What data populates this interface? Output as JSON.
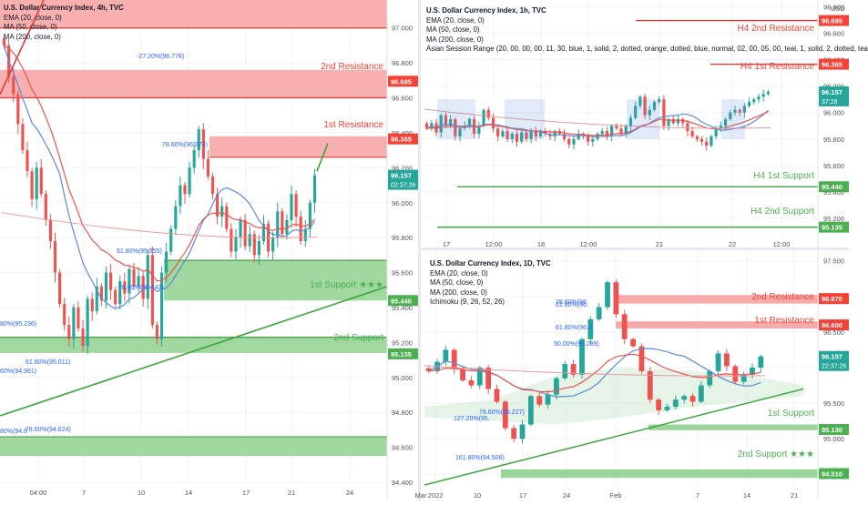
{
  "colors": {
    "up": "#26a69a",
    "down": "#ef5350",
    "ema": "#ef5350",
    "ma50": "#5b8bd6",
    "ma200": "#e59a9a",
    "resistance_zone": "#f7a1a1",
    "resistance_line": "#e53935",
    "support_zone": "#8fd18f",
    "support_line": "#43a047",
    "trend": "#3aa63a",
    "label_red": "#f44336",
    "label_green": "#4caf50",
    "label_teal": "#26a69a"
  },
  "panels": [
    {
      "name": "4h",
      "legend": [
        "U.S. Dollar Currency Index, 4h, TVC",
        "EMA (20, close, 0)",
        "MA (50, close, 0)",
        "MA (200, close, 0)"
      ],
      "currency": "",
      "chart_data": {
        "type": "candlestick",
        "ylim": [
          94.4,
          97.16
        ],
        "y_ticks": [
          "97.000",
          "96.800",
          "96.600",
          "96.400",
          "96.200",
          "96.000",
          "95.800",
          "95.600",
          "95.400",
          "95.200",
          "95.000",
          "94.800",
          "94.600",
          "94.400"
        ],
        "x_ticks": [
          "04:00",
          "7",
          "10",
          "14",
          "17",
          "21",
          "24"
        ],
        "price_labels": [
          {
            "text": "96.695",
            "value": 96.695,
            "kind": "res"
          },
          {
            "text": "96.365",
            "value": 96.365,
            "kind": "res"
          },
          {
            "text": "96.157",
            "sub": "02:37:26",
            "value": 96.157,
            "kind": "last"
          },
          {
            "text": "95.440",
            "value": 95.44,
            "kind": "sup"
          },
          {
            "text": "95.135",
            "value": 95.135,
            "kind": "sup"
          }
        ],
        "zones": [
          {
            "from": 97.0,
            "to": 97.16,
            "kind": "res"
          },
          {
            "from": 96.6,
            "to": 96.76,
            "kind": "res"
          },
          {
            "from": 96.26,
            "to": 96.38,
            "kind": "res"
          },
          {
            "from": 95.44,
            "to": 95.67,
            "kind": "sup"
          },
          {
            "from": 95.14,
            "to": 95.23,
            "kind": "sup"
          },
          {
            "from": 94.55,
            "to": 94.66,
            "kind": "sup"
          }
        ],
        "annotations": [
          "2nd Resistance",
          "1st Resistance",
          "1st Support ★★★",
          "2nd Support"
        ],
        "fib_labels": [
          "-27.20%(96.778)",
          "78.60%(96.273)",
          "61.80%(95.655)",
          "78.60%(95.442)",
          "80%(95.236)",
          "61.80%(95.011)",
          "60%(94.961)",
          "80%(94.6",
          "78.60%(94.624)"
        ],
        "closes": [
          96.9,
          96.72,
          96.62,
          96.45,
          96.3,
          96.18,
          96.02,
          96.2,
          96.05,
          95.9,
          95.78,
          95.6,
          95.42,
          95.3,
          95.22,
          95.4,
          95.28,
          95.18,
          95.45,
          95.38,
          95.52,
          95.44,
          95.6,
          95.5,
          95.42,
          95.55,
          95.48,
          95.62,
          95.52,
          95.58,
          95.45,
          95.7,
          95.3,
          95.22,
          95.6,
          95.72,
          95.85,
          95.98,
          96.1,
          96.05,
          96.2,
          96.3,
          96.42,
          96.25,
          96.15,
          96.05,
          95.92,
          95.98,
          95.85,
          95.72,
          95.8,
          95.9,
          95.75,
          95.82,
          95.7,
          95.78,
          95.88,
          95.72,
          95.8,
          95.95,
          95.82,
          95.9,
          96.05,
          95.92,
          95.78,
          95.85,
          96.0,
          96.157
        ]
      }
    },
    {
      "name": "1h",
      "legend": [
        "U.S. Dollar Currency Index, 1h, TVC",
        "EMA (20, close, 0)",
        "MA (50, close, 0)",
        "MA (200, close, 0)",
        "Asian Session Range (20, 00, 00, 00, 11, 30, blue, 1, solid, 2, dotted, orange, dotted, blue, normal, 02, 00, 05, 00, teal, 1, solid, 2, dotted, tea"
      ],
      "currency": "USD",
      "chart_data": {
        "type": "candlestick",
        "ylim": [
          95.05,
          96.85
        ],
        "y_ticks": [
          "96.800",
          "96.600",
          "96.400",
          "96.200",
          "96.000",
          "95.800",
          "95.600",
          "95.400",
          "95.200"
        ],
        "x_ticks": [
          "17",
          "12:00",
          "18",
          "12:00",
          "21",
          "22",
          "12:00"
        ],
        "price_labels": [
          {
            "text": "96.695",
            "value": 96.695,
            "kind": "res"
          },
          {
            "text": "96.365",
            "value": 96.365,
            "kind": "res"
          },
          {
            "text": "96.157",
            "sub": "37:26",
            "value": 96.157,
            "kind": "last"
          },
          {
            "text": "95.440",
            "value": 95.44,
            "kind": "sup"
          },
          {
            "text": "95.135",
            "value": 95.135,
            "kind": "sup"
          }
        ],
        "annotations": [
          "H4 2nd Resistance",
          "H4 1st Resistance",
          "H4 1st Support",
          "H4 2nd Support"
        ],
        "closes": [
          95.88,
          95.92,
          95.85,
          95.98,
          95.9,
          95.95,
          95.82,
          95.88,
          95.9,
          95.95,
          95.84,
          95.9,
          96.02,
          95.96,
          95.88,
          95.82,
          95.86,
          95.8,
          95.84,
          95.78,
          95.85,
          95.8,
          95.86,
          95.82,
          95.86,
          95.84,
          95.82,
          95.86,
          95.84,
          95.8,
          95.76,
          95.8,
          95.84,
          95.82,
          95.78,
          95.8,
          95.84,
          95.86,
          95.82,
          95.9,
          95.88,
          95.84,
          95.9,
          95.96,
          96.05,
          96.12,
          95.98,
          96.02,
          96.08,
          96.1,
          95.9,
          95.95,
          95.92,
          95.95,
          95.92,
          95.86,
          95.82,
          95.8,
          95.78,
          95.75,
          95.82,
          95.88,
          95.9,
          95.95,
          96.0,
          96.02,
          96.0,
          96.05,
          96.08,
          96.1,
          96.12,
          96.14,
          96.157
        ]
      }
    },
    {
      "name": "1D",
      "legend": [
        "U.S. Dollar Currency Index, 1D, TVC",
        "EMA (20, close, 0)",
        "MA (50, close, 0)",
        "MA (200, close, 0)",
        "Ichimoku (9, 26, 52, 26)"
      ],
      "currency": "",
      "chart_data": {
        "type": "candlestick",
        "ylim": [
          94.35,
          97.65
        ],
        "y_ticks": [
          "97.500",
          "97.000",
          "96.500",
          "96.000",
          "95.500",
          "95.000",
          "94.500"
        ],
        "x_ticks": [
          "2022",
          "10",
          "17",
          "24",
          "Feb",
          "7",
          "14",
          "21",
          "Mar"
        ],
        "price_labels": [
          {
            "text": "96.970",
            "value": 96.97,
            "kind": "res"
          },
          {
            "text": "96.600",
            "value": 96.6,
            "kind": "res"
          },
          {
            "text": "96.157",
            "sub": "22:37:26",
            "value": 96.157,
            "kind": "last"
          },
          {
            "text": "95.130",
            "value": 95.13,
            "kind": "sup"
          },
          {
            "text": "94.510",
            "value": 94.51,
            "kind": "sup"
          }
        ],
        "annotations": [
          "2nd Resistance",
          "1st Resistance",
          "1st Support",
          "2nd Support ★★★"
        ],
        "fib_labels": [
          "78.60%(96.",
          "61.80%(96.",
          "61.80%(96.3",
          "50.00%(96.289)",
          "78.60%(95.227)",
          "127.20%(95.",
          "161.80%(94.508)"
        ],
        "closes": [
          95.95,
          96.08,
          96.25,
          95.98,
          95.82,
          95.75,
          96.0,
          95.7,
          95.52,
          95.15,
          95.0,
          95.2,
          95.6,
          95.48,
          95.62,
          95.85,
          96.05,
          95.9,
          96.4,
          96.68,
          96.85,
          97.2,
          96.75,
          96.4,
          96.3,
          95.95,
          95.55,
          95.4,
          95.45,
          95.55,
          95.6,
          95.52,
          95.75,
          95.95,
          96.2,
          96.02,
          95.8,
          95.9,
          96.0,
          96.157
        ]
      }
    }
  ]
}
